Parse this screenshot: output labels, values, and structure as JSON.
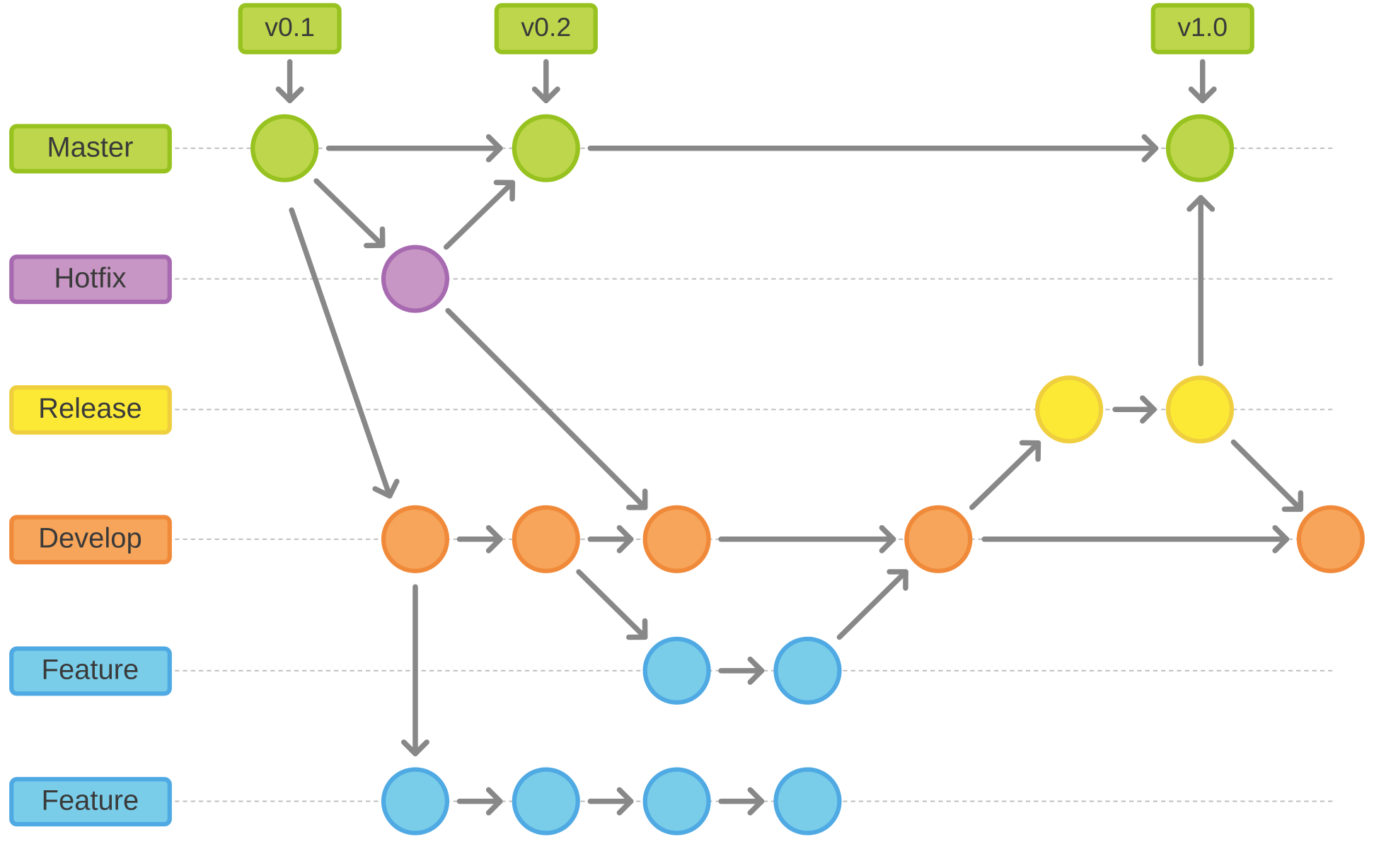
{
  "branches": [
    "Master",
    "Hotfix",
    "Release",
    "Develop",
    "Feature",
    "Feature"
  ],
  "tags": [
    "v0.1",
    "v0.2",
    "v1.0"
  ]
}
